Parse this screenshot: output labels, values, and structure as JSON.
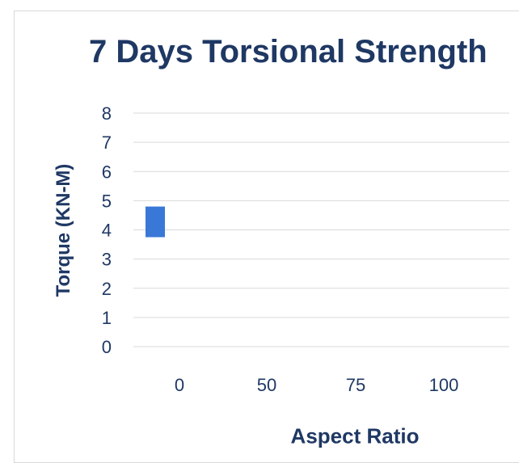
{
  "chart_data": {
    "type": "bar",
    "title": "7 Days Torsional Strength",
    "xlabel": "Aspect Ratio",
    "ylabel": "Torque  (KN-M)",
    "categories": [
      "0",
      "50",
      "75",
      "100"
    ],
    "series": [
      {
        "values": [
          4.8,
          null,
          null,
          null
        ]
      }
    ],
    "ylim": [
      0,
      8
    ],
    "yticks": [
      "0",
      "1",
      "2",
      "3",
      "4",
      "5",
      "6",
      "7",
      "8"
    ],
    "grid": true,
    "bar_color": "#3a78d8",
    "grid_color": "#d9d9d9",
    "text_color": "#1f3864"
  }
}
